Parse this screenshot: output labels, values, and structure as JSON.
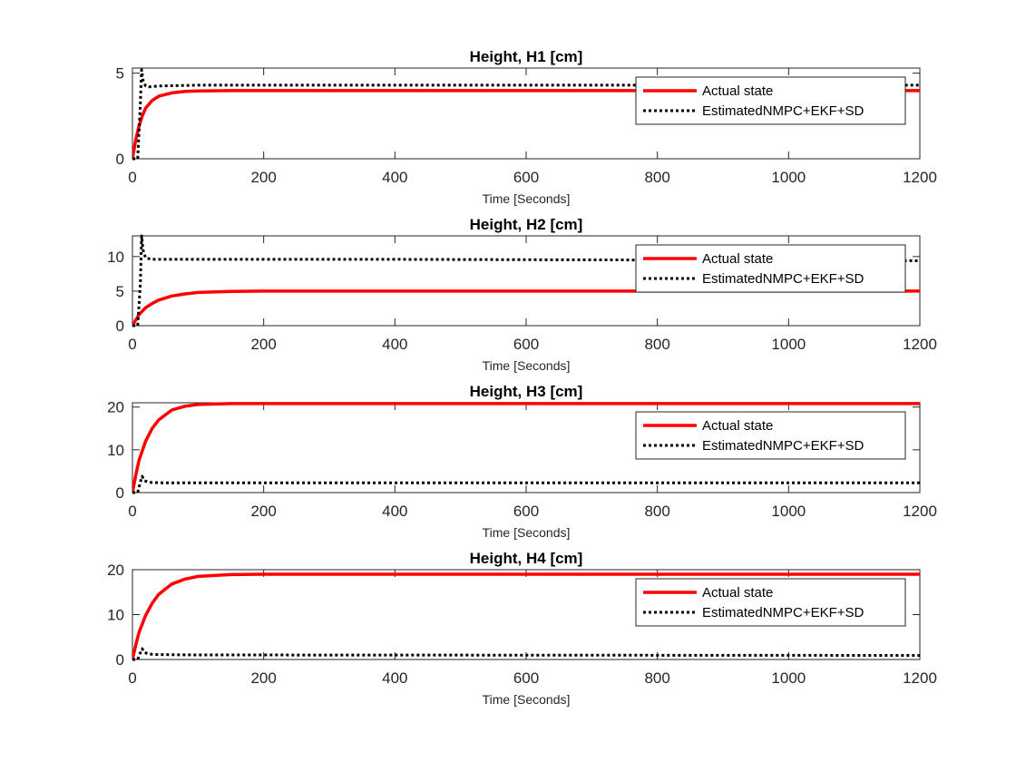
{
  "colors": {
    "actual": "#ff0000",
    "estimated": "#000000",
    "axes": "#262626"
  },
  "chart_data": [
    {
      "type": "line",
      "title": "Height, H1 [cm]",
      "xlabel": "Time [Seconds]",
      "ylabel": "",
      "xlim": [
        0,
        1200
      ],
      "ylim": [
        0,
        5.3
      ],
      "xticks": [
        0,
        200,
        400,
        600,
        800,
        1000,
        1200
      ],
      "yticks": [
        0,
        5
      ],
      "legend": {
        "position": "top-right",
        "entries": [
          "Actual state",
          "EstimatedNMPC+EKF+SD"
        ]
      },
      "series": [
        {
          "name": "Actual state",
          "style": "solid",
          "color": "#ff0000",
          "x": [
            0,
            5,
            10,
            15,
            20,
            30,
            40,
            60,
            80,
            100,
            150,
            200,
            1200
          ],
          "y": [
            0,
            1.1,
            1.9,
            2.5,
            2.95,
            3.4,
            3.65,
            3.85,
            3.93,
            3.96,
            3.98,
            3.98,
            3.98
          ]
        },
        {
          "name": "EstimatedNMPC+EKF+SD",
          "style": "dotted",
          "color": "#000000",
          "x": [
            0,
            8,
            12,
            14,
            16,
            20,
            25,
            40,
            100,
            1200
          ],
          "y": [
            0,
            0,
            3.2,
            5.2,
            4.6,
            4.25,
            4.2,
            4.25,
            4.3,
            4.3
          ]
        }
      ]
    },
    {
      "type": "line",
      "title": "Height, H2 [cm]",
      "xlabel": "Time [Seconds]",
      "ylabel": "",
      "xlim": [
        0,
        1200
      ],
      "ylim": [
        0,
        13
      ],
      "xticks": [
        0,
        200,
        400,
        600,
        800,
        1000,
        1200
      ],
      "yticks": [
        0,
        5,
        10
      ],
      "legend": {
        "position": "top-right",
        "entries": [
          "Actual state",
          "EstimatedNMPC+EKF+SD"
        ]
      },
      "series": [
        {
          "name": "Actual state",
          "style": "solid",
          "color": "#ff0000",
          "x": [
            0,
            5,
            10,
            20,
            30,
            40,
            60,
            80,
            100,
            150,
            200,
            1200
          ],
          "y": [
            0,
            0.8,
            1.6,
            2.6,
            3.2,
            3.7,
            4.3,
            4.6,
            4.8,
            4.95,
            5.0,
            5.0
          ]
        },
        {
          "name": "EstimatedNMPC+EKF+SD",
          "style": "dotted",
          "color": "#000000",
          "x": [
            0,
            8,
            12,
            14,
            16,
            20,
            30,
            100,
            400,
            1200
          ],
          "y": [
            0,
            0,
            6,
            13,
            11,
            9.8,
            9.6,
            9.6,
            9.6,
            9.4
          ]
        }
      ]
    },
    {
      "type": "line",
      "title": "Height, H3 [cm]",
      "xlabel": "Time [Seconds]",
      "ylabel": "",
      "xlim": [
        0,
        1200
      ],
      "ylim": [
        0,
        21
      ],
      "xticks": [
        0,
        200,
        400,
        600,
        800,
        1000,
        1200
      ],
      "yticks": [
        0,
        10,
        20
      ],
      "legend": {
        "position": "top-right",
        "entries": [
          "Actual state",
          "EstimatedNMPC+EKF+SD"
        ]
      },
      "series": [
        {
          "name": "Actual state",
          "style": "solid",
          "color": "#ff0000",
          "x": [
            0,
            5,
            10,
            20,
            30,
            40,
            60,
            80,
            100,
            150,
            200,
            1200
          ],
          "y": [
            0,
            4,
            7.5,
            12,
            15,
            17,
            19.3,
            20.2,
            20.6,
            20.8,
            20.8,
            20.8
          ]
        },
        {
          "name": "EstimatedNMPC+EKF+SD",
          "style": "dotted",
          "color": "#000000",
          "x": [
            0,
            8,
            12,
            15,
            18,
            25,
            40,
            100,
            1200
          ],
          "y": [
            0,
            0,
            2.5,
            3.8,
            2.8,
            2.4,
            2.3,
            2.3,
            2.3
          ]
        }
      ]
    },
    {
      "type": "line",
      "title": "Height, H4 [cm]",
      "xlabel": "Time [Seconds]",
      "ylabel": "",
      "xlim": [
        0,
        1200
      ],
      "ylim": [
        0,
        20
      ],
      "xticks": [
        0,
        200,
        400,
        600,
        800,
        1000,
        1200
      ],
      "yticks": [
        0,
        10,
        20
      ],
      "legend": {
        "position": "top-right",
        "entries": [
          "Actual state",
          "EstimatedNMPC+EKF+SD"
        ]
      },
      "series": [
        {
          "name": "Actual state",
          "style": "solid",
          "color": "#ff0000",
          "x": [
            0,
            5,
            10,
            20,
            30,
            40,
            60,
            80,
            100,
            150,
            200,
            1200
          ],
          "y": [
            0,
            3.2,
            6,
            9.8,
            12.5,
            14.5,
            16.8,
            17.9,
            18.5,
            18.9,
            19.0,
            19.0
          ]
        },
        {
          "name": "EstimatedNMPC+EKF+SD",
          "style": "dotted",
          "color": "#000000",
          "x": [
            0,
            8,
            12,
            15,
            18,
            25,
            40,
            100,
            1200
          ],
          "y": [
            0,
            0,
            1.5,
            2.4,
            1.6,
            1.2,
            1.1,
            1.0,
            0.9
          ]
        }
      ]
    }
  ]
}
